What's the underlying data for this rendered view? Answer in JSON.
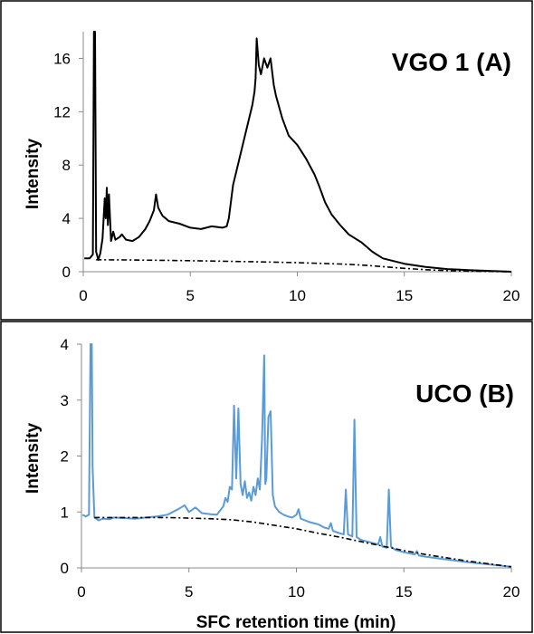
{
  "chart_data": [
    {
      "type": "line",
      "title": "VGO 1 (A)",
      "xlabel": "",
      "ylabel": "Intensity",
      "xlim": [
        0,
        20
      ],
      "ylim": [
        0,
        18
      ],
      "xticks": [
        0,
        5,
        10,
        15,
        20
      ],
      "yticks": [
        0,
        4,
        8,
        12,
        16
      ],
      "grid": false,
      "colors": {
        "signal": "#000000",
        "baseline": "#000000"
      },
      "series": [
        {
          "style": "solid",
          "points": [
            [
              0.05,
              1.0
            ],
            [
              0.3,
              1.0
            ],
            [
              0.45,
              1.3
            ],
            [
              0.5,
              18
            ],
            [
              0.55,
              18
            ],
            [
              0.6,
              1.5
            ],
            [
              0.7,
              0.9
            ],
            [
              0.8,
              1.4
            ],
            [
              0.9,
              2.5
            ],
            [
              1.0,
              5.5
            ],
            [
              1.05,
              4.0
            ],
            [
              1.1,
              6.3
            ],
            [
              1.15,
              3.5
            ],
            [
              1.2,
              5.8
            ],
            [
              1.3,
              2.3
            ],
            [
              1.4,
              3.0
            ],
            [
              1.5,
              2.4
            ],
            [
              1.7,
              2.6
            ],
            [
              1.8,
              2.8
            ],
            [
              2.0,
              2.4
            ],
            [
              2.3,
              2.3
            ],
            [
              2.6,
              2.6
            ],
            [
              2.9,
              3.2
            ],
            [
              3.1,
              3.8
            ],
            [
              3.3,
              4.6
            ],
            [
              3.4,
              5.8
            ],
            [
              3.5,
              4.8
            ],
            [
              3.7,
              4.2
            ],
            [
              4.0,
              3.8
            ],
            [
              4.5,
              3.6
            ],
            [
              5.0,
              3.3
            ],
            [
              5.5,
              3.2
            ],
            [
              6.0,
              3.4
            ],
            [
              6.5,
              3.3
            ],
            [
              6.7,
              3.4
            ],
            [
              6.8,
              4.0
            ],
            [
              7.0,
              6.5
            ],
            [
              7.3,
              8.5
            ],
            [
              7.6,
              10.5
            ],
            [
              7.9,
              12.5
            ],
            [
              8.0,
              13.5
            ],
            [
              8.05,
              14.5
            ],
            [
              8.1,
              17.5
            ],
            [
              8.2,
              15.5
            ],
            [
              8.3,
              14.8
            ],
            [
              8.45,
              16.0
            ],
            [
              8.6,
              15.3
            ],
            [
              8.75,
              16.0
            ],
            [
              8.9,
              14.0
            ],
            [
              9.0,
              13.2
            ],
            [
              9.3,
              11.5
            ],
            [
              9.6,
              10.2
            ],
            [
              10.0,
              9.5
            ],
            [
              10.4,
              8.5
            ],
            [
              10.8,
              7.3
            ],
            [
              11.0,
              6.5
            ],
            [
              11.3,
              5.2
            ],
            [
              11.6,
              4.3
            ],
            [
              12.0,
              3.5
            ],
            [
              12.4,
              2.8
            ],
            [
              13.0,
              2.2
            ],
            [
              13.5,
              1.5
            ],
            [
              14.0,
              1.0
            ],
            [
              15.0,
              0.6
            ],
            [
              16.0,
              0.35
            ],
            [
              17.0,
              0.2
            ],
            [
              18.0,
              0.12
            ],
            [
              19.0,
              0.06
            ],
            [
              20.0,
              0.0
            ]
          ]
        },
        {
          "style": "dash-dot",
          "points": [
            [
              0.6,
              0.9
            ],
            [
              2,
              0.88
            ],
            [
              4,
              0.85
            ],
            [
              6,
              0.8
            ],
            [
              8,
              0.75
            ],
            [
              10,
              0.68
            ],
            [
              12,
              0.58
            ],
            [
              13,
              0.5
            ],
            [
              14,
              0.38
            ],
            [
              15,
              0.25
            ],
            [
              16,
              0.15
            ],
            [
              17,
              0.08
            ],
            [
              18,
              0.04
            ],
            [
              19,
              0.02
            ],
            [
              20,
              0.0
            ]
          ]
        }
      ]
    },
    {
      "type": "line",
      "title": "UCO (B)",
      "xlabel": "SFC retention time (min)",
      "ylabel": "Intensity",
      "xlim": [
        0,
        20
      ],
      "ylim": [
        0,
        4
      ],
      "xticks": [
        0,
        5,
        10,
        15,
        20
      ],
      "yticks": [
        0,
        1,
        2,
        3,
        4
      ],
      "grid": false,
      "colors": {
        "signal": "#5b9bd5",
        "baseline": "#000000"
      },
      "series": [
        {
          "style": "solid",
          "points": [
            [
              0.05,
              0.95
            ],
            [
              0.2,
              0.92
            ],
            [
              0.35,
              0.95
            ],
            [
              0.42,
              4.0
            ],
            [
              0.48,
              4.0
            ],
            [
              0.52,
              1.8
            ],
            [
              0.6,
              0.9
            ],
            [
              0.8,
              0.85
            ],
            [
              1.0,
              0.88
            ],
            [
              1.3,
              0.87
            ],
            [
              1.5,
              0.9
            ],
            [
              2.0,
              0.89
            ],
            [
              2.5,
              0.88
            ],
            [
              3.0,
              0.9
            ],
            [
              3.5,
              0.92
            ],
            [
              4.0,
              0.95
            ],
            [
              4.5,
              1.05
            ],
            [
              4.8,
              1.12
            ],
            [
              5.0,
              1.0
            ],
            [
              5.3,
              1.08
            ],
            [
              5.6,
              0.98
            ],
            [
              6.0,
              0.96
            ],
            [
              6.3,
              0.95
            ],
            [
              6.6,
              1.1
            ],
            [
              6.7,
              1.25
            ],
            [
              6.8,
              1.18
            ],
            [
              6.9,
              1.45
            ],
            [
              7.0,
              1.4
            ],
            [
              7.1,
              2.9
            ],
            [
              7.2,
              1.6
            ],
            [
              7.3,
              2.85
            ],
            [
              7.4,
              1.5
            ],
            [
              7.5,
              1.3
            ],
            [
              7.6,
              1.55
            ],
            [
              7.7,
              1.25
            ],
            [
              7.8,
              1.35
            ],
            [
              7.9,
              1.2
            ],
            [
              8.0,
              1.45
            ],
            [
              8.1,
              1.3
            ],
            [
              8.2,
              1.6
            ],
            [
              8.3,
              1.4
            ],
            [
              8.4,
              2.3
            ],
            [
              8.5,
              3.8
            ],
            [
              8.55,
              1.5
            ],
            [
              8.6,
              1.6
            ],
            [
              8.7,
              2.7
            ],
            [
              8.8,
              2.8
            ],
            [
              8.9,
              1.3
            ],
            [
              9.0,
              1.1
            ],
            [
              9.2,
              1.0
            ],
            [
              9.4,
              0.95
            ],
            [
              9.6,
              0.92
            ],
            [
              9.8,
              0.9
            ],
            [
              10.0,
              0.95
            ],
            [
              10.1,
              1.05
            ],
            [
              10.2,
              0.88
            ],
            [
              10.4,
              0.85
            ],
            [
              10.6,
              0.82
            ],
            [
              10.8,
              0.8
            ],
            [
              11.0,
              0.78
            ],
            [
              11.3,
              0.72
            ],
            [
              11.5,
              0.7
            ],
            [
              11.6,
              0.8
            ],
            [
              11.7,
              0.66
            ],
            [
              12.0,
              0.62
            ],
            [
              12.2,
              0.6
            ],
            [
              12.3,
              1.4
            ],
            [
              12.4,
              0.6
            ],
            [
              12.6,
              0.56
            ],
            [
              12.7,
              2.65
            ],
            [
              12.8,
              0.55
            ],
            [
              13.0,
              0.5
            ],
            [
              13.5,
              0.45
            ],
            [
              13.8,
              0.42
            ],
            [
              13.9,
              0.55
            ],
            [
              14.0,
              0.38
            ],
            [
              14.2,
              0.36
            ],
            [
              14.3,
              1.4
            ],
            [
              14.4,
              0.38
            ],
            [
              14.6,
              0.32
            ],
            [
              15.0,
              0.28
            ],
            [
              15.5,
              0.24
            ],
            [
              15.6,
              0.3
            ],
            [
              15.7,
              0.22
            ],
            [
              16.0,
              0.2
            ],
            [
              17.0,
              0.15
            ],
            [
              18.0,
              0.1
            ],
            [
              19.0,
              0.06
            ],
            [
              20.0,
              0.02
            ]
          ]
        },
        {
          "style": "dash-dot",
          "points": [
            [
              0.6,
              0.9
            ],
            [
              2,
              0.9
            ],
            [
              4,
              0.9
            ],
            [
              6,
              0.88
            ],
            [
              7,
              0.86
            ],
            [
              8,
              0.82
            ],
            [
              9,
              0.76
            ],
            [
              10,
              0.7
            ],
            [
              11,
              0.62
            ],
            [
              12,
              0.55
            ],
            [
              13,
              0.47
            ],
            [
              14,
              0.39
            ],
            [
              15,
              0.31
            ],
            [
              16,
              0.24
            ],
            [
              17,
              0.18
            ],
            [
              18,
              0.12
            ],
            [
              19,
              0.07
            ],
            [
              20,
              0.02
            ]
          ]
        }
      ]
    }
  ]
}
